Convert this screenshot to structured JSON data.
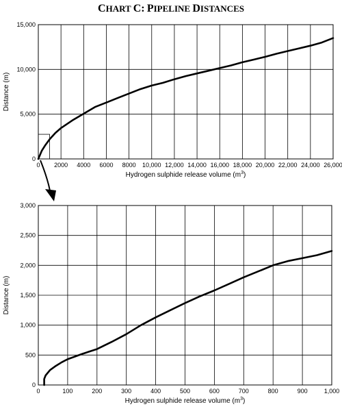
{
  "title_word1_cap": "C",
  "title_word1_rest": "HART",
  "title_word2_cap": "C:",
  "title_word3_cap": "P",
  "title_word3_rest": "IPELINE",
  "title_word4_cap": "D",
  "title_word4_rest": "ISTANCES",
  "chart_data": [
    {
      "type": "line",
      "xlabel": "Hydrogen sulphide release volume (m",
      "xlabel_sup": "3",
      "xlabel_close": ")",
      "ylabel": "Distance (m)",
      "xlim": [
        0,
        26000
      ],
      "ylim": [
        0,
        15000
      ],
      "x_ticks": [
        0,
        2000,
        4000,
        6000,
        8000,
        10000,
        12000,
        14000,
        16000,
        18000,
        20000,
        22000,
        24000,
        26000
      ],
      "x_tick_labels": [
        "0",
        "2000",
        "4000",
        "6000",
        "8000",
        "10,000",
        "12,000",
        "14,000",
        "16,000",
        "18,000",
        "20,000",
        "22,000",
        "24,000",
        "26,000"
      ],
      "y_ticks": [
        0,
        5000,
        10000,
        15000
      ],
      "y_tick_labels": [
        "0",
        "5,000",
        "10,000",
        "15,000"
      ],
      "grid": true,
      "inset_box": {
        "x": [
          0,
          1000
        ],
        "y": [
          0,
          2750
        ]
      },
      "series": [
        {
          "x": [
            0,
            300,
            600,
            1000,
            1500,
            2000,
            3000,
            4000,
            5000,
            6000,
            7000,
            8000,
            9000,
            10000,
            11000,
            12000,
            13000,
            14000,
            15000,
            16000,
            17000,
            18000,
            19000,
            20000,
            21000,
            22000,
            23000,
            24000,
            25000,
            26000
          ],
          "y": [
            0,
            900,
            1500,
            2200,
            2900,
            3450,
            4300,
            5050,
            5800,
            6300,
            6800,
            7300,
            7800,
            8200,
            8500,
            8900,
            9250,
            9550,
            9850,
            10150,
            10450,
            10800,
            11100,
            11400,
            11750,
            12050,
            12350,
            12650,
            13000,
            13500
          ]
        }
      ]
    },
    {
      "type": "line",
      "xlabel": "Hydrogen sulphide release volume (m",
      "xlabel_sup": "3",
      "xlabel_close": ")",
      "ylabel": "Distance (m)",
      "xlim": [
        0,
        1000
      ],
      "ylim": [
        0,
        3000
      ],
      "x_ticks": [
        0,
        100,
        200,
        300,
        400,
        500,
        600,
        700,
        800,
        900,
        1000
      ],
      "x_tick_labels": [
        "0",
        "100",
        "200",
        "300",
        "400",
        "500",
        "600",
        "700",
        "800",
        "900",
        "1,000"
      ],
      "y_ticks": [
        0,
        500,
        1000,
        1500,
        2000,
        2500,
        3000
      ],
      "y_tick_labels": [
        "0",
        "500",
        "1,000",
        "1,500",
        "2,000",
        "2,500",
        "3,000"
      ],
      "grid": true,
      "series": [
        {
          "x": [
            20,
            20,
            25,
            40,
            60,
            80,
            100,
            150,
            200,
            250,
            300,
            350,
            400,
            450,
            500,
            550,
            600,
            650,
            700,
            750,
            800,
            850,
            900,
            950,
            1000
          ],
          "y": [
            0,
            100,
            160,
            250,
            320,
            380,
            430,
            520,
            600,
            720,
            850,
            1000,
            1130,
            1250,
            1370,
            1480,
            1580,
            1690,
            1800,
            1900,
            2000,
            2070,
            2120,
            2170,
            2240
          ]
        }
      ]
    }
  ]
}
